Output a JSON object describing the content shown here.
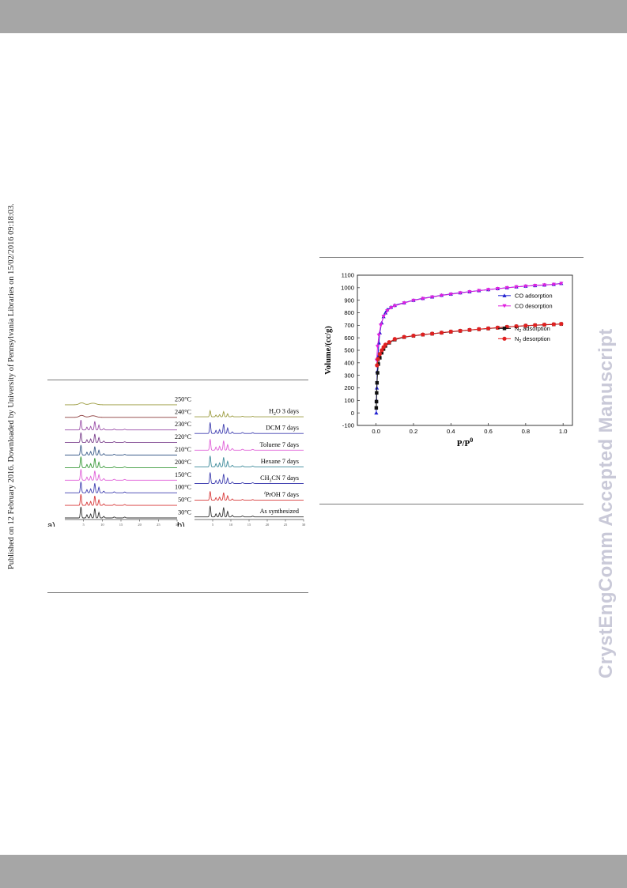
{
  "side_note": "Published on 12 February 2016. Downloaded by University of Pennsylvania Libraries on 15/02/2016 09:18:03.",
  "watermark": "CrystEngComm Accepted Manuscript",
  "chart_data": [
    {
      "type": "line",
      "panel_label": "a)",
      "xlabel": "2Thata/°",
      "x_ticks": [
        5,
        10,
        15,
        20,
        25,
        30
      ],
      "xlim": [
        0,
        30
      ],
      "series": [
        {
          "name": "250°C",
          "color": "#9a9a3c",
          "peak_scale": 0.08
        },
        {
          "name": "240°C",
          "color": "#8b3a3a",
          "peak_scale": 0.15
        },
        {
          "name": "230°C",
          "color": "#9b4fa8",
          "peak_scale": 0.9
        },
        {
          "name": "220°C",
          "color": "#7a3f8c",
          "peak_scale": 0.9
        },
        {
          "name": "210°C",
          "color": "#3d5e8c",
          "peak_scale": 0.9
        },
        {
          "name": "200°C",
          "color": "#3a9a3a",
          "peak_scale": 1.0
        },
        {
          "name": "150°C",
          "color": "#e060d8",
          "peak_scale": 1.0
        },
        {
          "name": "100°C",
          "color": "#3f3fb0",
          "peak_scale": 1.0
        },
        {
          "name": "50°C",
          "color": "#d83a3a",
          "peak_scale": 1.0
        },
        {
          "name": "30°C",
          "color": "#333333",
          "peak_scale": 1.0
        }
      ]
    },
    {
      "type": "line",
      "panel_label": "b)",
      "xlabel": "2Theta/°",
      "x_ticks": [
        5,
        10,
        15,
        20,
        25,
        30
      ],
      "xlim": [
        0,
        30
      ],
      "series": [
        {
          "name": "H₂O 3 days",
          "label_parts": [
            "H",
            "2",
            "O 3 days"
          ],
          "color": "#9a9a3c",
          "peak_scale": 0.55
        },
        {
          "name": "DCM 7 days",
          "color": "#3f3fb0",
          "peak_scale": 1.0
        },
        {
          "name": "Toluene 7 days",
          "color": "#e060d8",
          "peak_scale": 1.0
        },
        {
          "name": "Hexane 7 days",
          "color": "#3d8a9a",
          "peak_scale": 1.0
        },
        {
          "name": "CH₃CN 7 days",
          "label_parts": [
            "CH",
            "3",
            "CN 7 days"
          ],
          "color": "#3f3fb0",
          "peak_scale": 1.0
        },
        {
          "name": "ⁱPrOH 7 days",
          "label_parts": [
            "i",
            "PrOH  7 days"
          ],
          "color": "#d83a3a",
          "peak_scale": 0.8
        },
        {
          "name": "As synthesized",
          "color": "#333333",
          "peak_scale": 1.0
        }
      ]
    },
    {
      "type": "scatter",
      "xlabel": "P/P",
      "xlabel_sup": "0",
      "ylabel": "Volume/(cc/g)",
      "xlim": [
        -0.1,
        1.05
      ],
      "ylim": [
        -100,
        1100
      ],
      "x_ticks": [
        0.0,
        0.2,
        0.4,
        0.6,
        0.8,
        1.0
      ],
      "x_tick_labels": [
        "0.0",
        "0.2",
        "0.4",
        "0.6",
        "0.8",
        "1.0"
      ],
      "y_ticks": [
        -100,
        0,
        100,
        200,
        300,
        400,
        500,
        600,
        700,
        800,
        900,
        1000,
        1100
      ],
      "legend_position": "right",
      "series": [
        {
          "name": "CO adsorption",
          "color": "#2020d0",
          "marker": "triangle-up",
          "x": [
            0.001,
            0.002,
            0.004,
            0.006,
            0.01,
            0.015,
            0.02,
            0.03,
            0.04,
            0.05,
            0.06,
            0.08,
            0.1,
            0.15,
            0.2,
            0.25,
            0.3,
            0.35,
            0.4,
            0.45,
            0.5,
            0.55,
            0.6,
            0.65,
            0.7,
            0.75,
            0.8,
            0.85,
            0.9,
            0.95,
            0.99
          ],
          "y": [
            0,
            100,
            200,
            330,
            450,
            560,
            640,
            720,
            770,
            800,
            825,
            845,
            860,
            880,
            900,
            915,
            927,
            940,
            950,
            960,
            968,
            977,
            985,
            993,
            1000,
            1007,
            1013,
            1018,
            1022,
            1027,
            1035
          ]
        },
        {
          "name": "CO desorption",
          "color": "#e020e0",
          "marker": "triangle-down",
          "x": [
            0.003,
            0.008,
            0.015,
            0.025,
            0.04,
            0.06,
            0.08,
            0.1,
            0.15,
            0.2,
            0.25,
            0.3,
            0.35,
            0.4,
            0.45,
            0.5,
            0.55,
            0.6,
            0.65,
            0.7,
            0.75,
            0.8,
            0.85,
            0.9,
            0.95,
            0.99
          ],
          "y": [
            420,
            530,
            620,
            700,
            770,
            815,
            840,
            855,
            878,
            898,
            913,
            925,
            938,
            948,
            958,
            967,
            976,
            984,
            992,
            999,
            1006,
            1012,
            1017,
            1021,
            1026,
            1033
          ]
        },
        {
          "name": "N₂ adsorption",
          "label_parts": [
            "N",
            "2",
            " adsorption"
          ],
          "color": "#111111",
          "marker": "square",
          "x": [
            0.001,
            0.002,
            0.003,
            0.005,
            0.008,
            0.012,
            0.02,
            0.03,
            0.04,
            0.05,
            0.07,
            0.1,
            0.15,
            0.2,
            0.25,
            0.3,
            0.35,
            0.4,
            0.45,
            0.5,
            0.55,
            0.6,
            0.65,
            0.7,
            0.75,
            0.8,
            0.85,
            0.9,
            0.95,
            0.99
          ],
          "y": [
            40,
            90,
            160,
            240,
            320,
            390,
            440,
            480,
            510,
            535,
            560,
            585,
            605,
            615,
            625,
            632,
            640,
            648,
            655,
            662,
            668,
            674,
            680,
            686,
            691,
            696,
            700,
            704,
            707,
            710
          ]
        },
        {
          "name": "N₂ desorption",
          "label_parts": [
            "N",
            "2",
            " desorption"
          ],
          "color": "#e02020",
          "marker": "circle",
          "x": [
            0.005,
            0.01,
            0.02,
            0.03,
            0.04,
            0.05,
            0.07,
            0.1,
            0.15,
            0.2,
            0.25,
            0.3,
            0.35,
            0.4,
            0.45,
            0.5,
            0.55,
            0.6,
            0.65,
            0.7,
            0.75,
            0.8,
            0.85,
            0.9,
            0.95,
            0.99
          ],
          "y": [
            380,
            430,
            470,
            500,
            525,
            545,
            565,
            590,
            607,
            617,
            626,
            633,
            641,
            649,
            656,
            663,
            669,
            675,
            681,
            687,
            692,
            697,
            701,
            705,
            708,
            711
          ]
        }
      ]
    }
  ]
}
